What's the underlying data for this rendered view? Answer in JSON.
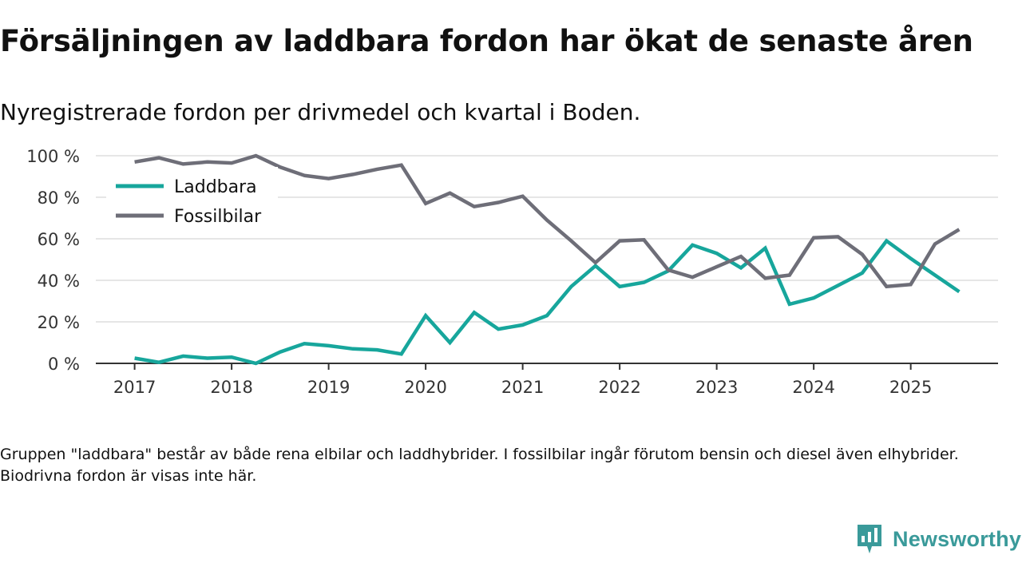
{
  "title": "Försäljningen av laddbara fordon har ökat de senaste åren",
  "subtitle": "Nyregistrerade fordon per drivmedel och kvartal i Boden.",
  "footnote": "Gruppen \"laddbara\" består av både rena elbilar och laddhybrider. I fossilbilar ingår förutom bensin och diesel även elhybrider. Biodrivna fordon är visas inte här.",
  "brand": {
    "name": "Newsworthy",
    "color": "#3a9a9a"
  },
  "colors": {
    "laddbara": "#17a69c",
    "fossilbilar": "#6e6e78",
    "grid": "#dddddd",
    "axis": "#333333"
  },
  "chart_data": {
    "type": "line",
    "title": "Försäljningen av laddbara fordon har ökat de senaste åren",
    "subtitle": "Nyregistrerade fordon per drivmedel och kvartal i Boden.",
    "xlabel": "",
    "ylabel": "",
    "x_start": 2017.0,
    "x_step": 0.25,
    "xlim": [
      2016.6,
      2025.9
    ],
    "ylim": [
      0,
      100
    ],
    "x_ticks": [
      2017,
      2018,
      2019,
      2020,
      2021,
      2022,
      2023,
      2024,
      2025
    ],
    "y_ticks": [
      0,
      20,
      40,
      60,
      80,
      100
    ],
    "y_tick_labels": [
      "0 %",
      "20 %",
      "40 %",
      "60 %",
      "80 %",
      "100 %"
    ],
    "grid": true,
    "legend_position": "top-left",
    "series": [
      {
        "name": "Laddbara",
        "color": "#17a69c",
        "values": [
          2.5,
          0.5,
          3.5,
          2.5,
          3,
          0,
          5.5,
          9.5,
          8.5,
          7,
          6.5,
          4.5,
          23,
          10,
          24.5,
          16.5,
          18.5,
          23,
          37,
          47,
          37,
          39,
          44.5,
          57,
          53,
          46,
          55.5,
          28.5,
          31.5,
          37.5,
          43.5,
          59,
          50.5,
          42.5,
          34.5
        ]
      },
      {
        "name": "Fossilbilar",
        "color": "#6e6e78",
        "values": [
          97,
          99,
          96,
          97,
          96.5,
          100,
          94.5,
          90.5,
          89,
          91,
          93.5,
          95.5,
          77,
          82,
          75.5,
          77.5,
          80.5,
          69,
          59,
          48.5,
          59,
          59.5,
          45,
          41.5,
          46.5,
          51.5,
          41,
          42.5,
          60.5,
          61,
          52.5,
          37,
          38,
          57.5,
          64.5
        ]
      }
    ]
  }
}
